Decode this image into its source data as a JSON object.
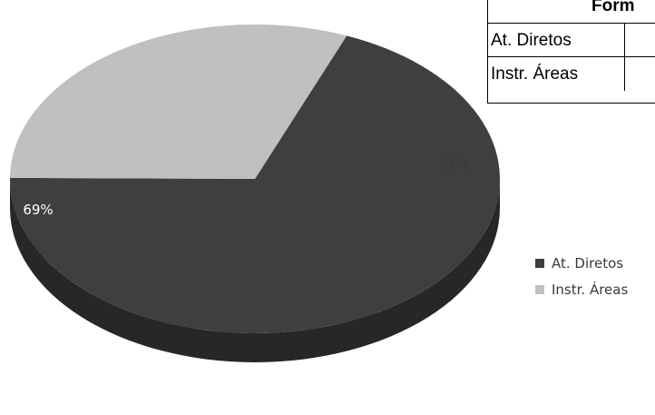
{
  "chart_data": {
    "type": "pie",
    "style": "3d",
    "categories": [
      "At. Diretos",
      "Instr. Áreas"
    ],
    "values": [
      69,
      31
    ],
    "data_labels": [
      "69%",
      "31%"
    ],
    "colors": [
      "#3f3f3f",
      "#c0c0c0"
    ],
    "legend_position": "right"
  },
  "table": {
    "header": "Form",
    "rows": [
      {
        "label": "At. Diretos"
      },
      {
        "label": "Instr. Áreas"
      }
    ]
  },
  "legend": {
    "items": [
      {
        "label": "At. Diretos",
        "color": "#3f3f3f"
      },
      {
        "label": "Instr. Áreas",
        "color": "#c0c0c0"
      }
    ]
  }
}
